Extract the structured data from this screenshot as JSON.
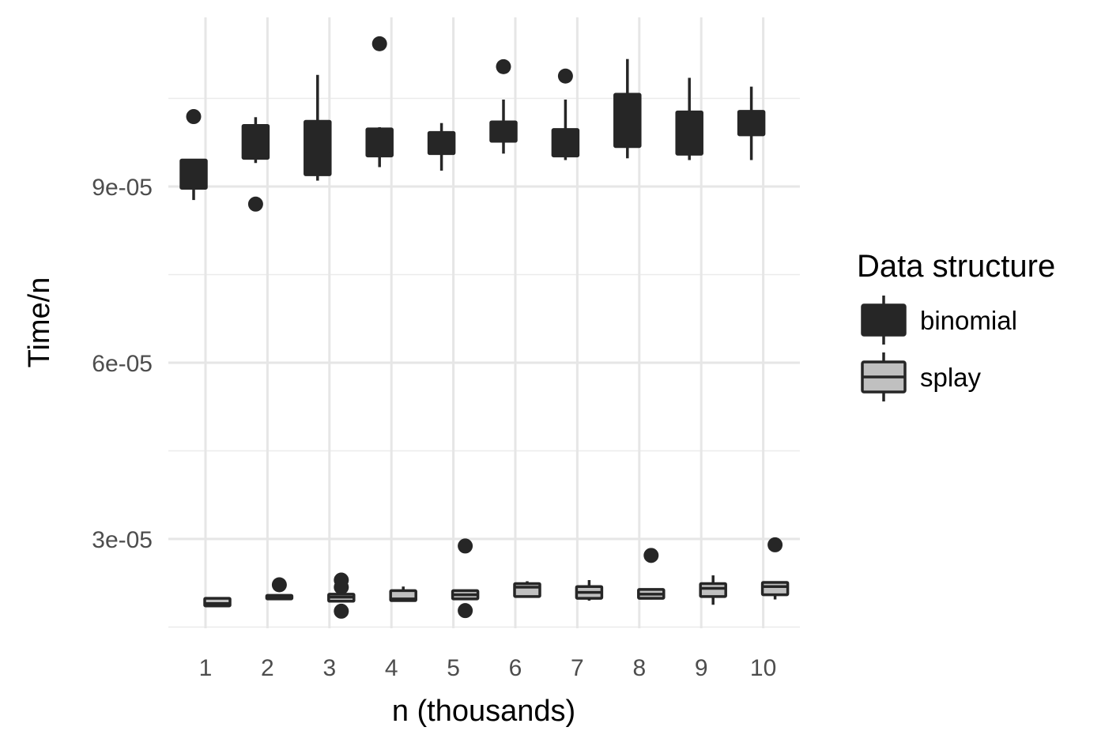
{
  "chart_data": {
    "type": "boxplot",
    "xlabel": "n (thousands)",
    "ylabel": "Time/n",
    "categories": [
      "1",
      "2",
      "3",
      "4",
      "5",
      "6",
      "7",
      "8",
      "9",
      "10"
    ],
    "y_ticks": [
      "3e-05",
      "6e-05",
      "9e-05"
    ],
    "y_tick_values": [
      3e-05,
      6e-05,
      9e-05
    ],
    "ylim": [
      1.5e-05,
      0.000119
    ],
    "grid": true,
    "legend": {
      "title": "Data structure",
      "position": "right",
      "entries": [
        {
          "label": "binomial",
          "fill": "#262626"
        },
        {
          "label": "splay",
          "fill": "#c0c0c0"
        }
      ]
    },
    "series": [
      {
        "name": "binomial",
        "fill": "#262626",
        "boxes": [
          {
            "x": 1,
            "whislo": 8.77e-05,
            "q1": 8.97e-05,
            "med": 9.2e-05,
            "q3": 9.45e-05,
            "whishi": 9.45e-05,
            "outliers": [
              0.0001019
            ]
          },
          {
            "x": 2,
            "whislo": 9.4e-05,
            "q1": 9.48e-05,
            "med": 9.8e-05,
            "q3": 0.0001004,
            "whishi": 0.0001018,
            "outliers": [
              8.7e-05
            ]
          },
          {
            "x": 3,
            "whislo": 9.1e-05,
            "q1": 9.2e-05,
            "med": 9.55e-05,
            "q3": 0.0001011,
            "whishi": 0.000109,
            "outliers": []
          },
          {
            "x": 4,
            "whislo": 9.33e-05,
            "q1": 9.52e-05,
            "med": 9.7e-05,
            "q3": 9.98e-05,
            "whishi": 0.0001001,
            "outliers": [
              0.0001143
            ]
          },
          {
            "x": 5,
            "whislo": 9.27e-05,
            "q1": 9.56e-05,
            "med": 9.75e-05,
            "q3": 9.92e-05,
            "whishi": 0.0001008,
            "outliers": []
          },
          {
            "x": 6,
            "whislo": 9.56e-05,
            "q1": 9.77e-05,
            "med": 9.9e-05,
            "q3": 0.000101,
            "whishi": 0.0001048,
            "outliers": [
              0.0001104
            ]
          },
          {
            "x": 7,
            "whislo": 9.45e-05,
            "q1": 9.52e-05,
            "med": 9.7e-05,
            "q3": 9.97e-05,
            "whishi": 0.0001048,
            "outliers": [
              0.0001088
            ]
          },
          {
            "x": 8,
            "whislo": 9.48e-05,
            "q1": 9.68e-05,
            "med": 0.0001,
            "q3": 0.0001057,
            "whishi": 0.0001117,
            "outliers": []
          },
          {
            "x": 9,
            "whislo": 9.45e-05,
            "q1": 9.55e-05,
            "med": 9.85e-05,
            "q3": 0.0001027,
            "whishi": 0.0001085,
            "outliers": []
          },
          {
            "x": 10,
            "whislo": 9.45e-05,
            "q1": 9.88e-05,
            "med": 0.0001008,
            "q3": 0.0001028,
            "whishi": 0.000107,
            "outliers": []
          }
        ]
      },
      {
        "name": "splay",
        "fill": "#c0c0c0",
        "boxes": [
          {
            "x": 1,
            "whislo": 1.85e-05,
            "q1": 1.86e-05,
            "med": 1.9e-05,
            "q3": 1.99e-05,
            "whishi": 1.99e-05,
            "outliers": []
          },
          {
            "x": 2,
            "whislo": 1.98e-05,
            "q1": 1.98e-05,
            "med": 2.01e-05,
            "q3": 2.04e-05,
            "whishi": 2.04e-05,
            "outliers": [
              2.22e-05
            ]
          },
          {
            "x": 3,
            "whislo": 1.94e-05,
            "q1": 1.94e-05,
            "med": 2.01e-05,
            "q3": 2.06e-05,
            "whishi": 2.06e-05,
            "outliers": [
              2.3e-05,
              2.18e-05,
              1.77e-05
            ]
          },
          {
            "x": 4,
            "whislo": 1.94e-05,
            "q1": 1.95e-05,
            "med": 1.98e-05,
            "q3": 2.12e-05,
            "whishi": 2.19e-05,
            "outliers": []
          },
          {
            "x": 5,
            "whislo": 1.97e-05,
            "q1": 1.98e-05,
            "med": 2.05e-05,
            "q3": 2.12e-05,
            "whishi": 2.12e-05,
            "outliers": [
              2.88e-05,
              1.78e-05
            ]
          },
          {
            "x": 6,
            "whislo": 2e-05,
            "q1": 2.02e-05,
            "med": 2.18e-05,
            "q3": 2.24e-05,
            "whishi": 2.28e-05,
            "outliers": []
          },
          {
            "x": 7,
            "whislo": 1.95e-05,
            "q1": 1.99e-05,
            "med": 2.09e-05,
            "q3": 2.19e-05,
            "whishi": 2.3e-05,
            "outliers": []
          },
          {
            "x": 8,
            "whislo": 1.97e-05,
            "q1": 1.99e-05,
            "med": 2.06e-05,
            "q3": 2.14e-05,
            "whishi": 2.14e-05,
            "outliers": [
              2.72e-05
            ]
          },
          {
            "x": 9,
            "whislo": 1.88e-05,
            "q1": 2.02e-05,
            "med": 2.16e-05,
            "q3": 2.24e-05,
            "whishi": 2.38e-05,
            "outliers": []
          },
          {
            "x": 10,
            "whislo": 1.97e-05,
            "q1": 2.05e-05,
            "med": 2.19e-05,
            "q3": 2.26e-05,
            "whishi": 2.26e-05,
            "outliers": [
              2.9e-05
            ]
          }
        ]
      }
    ]
  }
}
